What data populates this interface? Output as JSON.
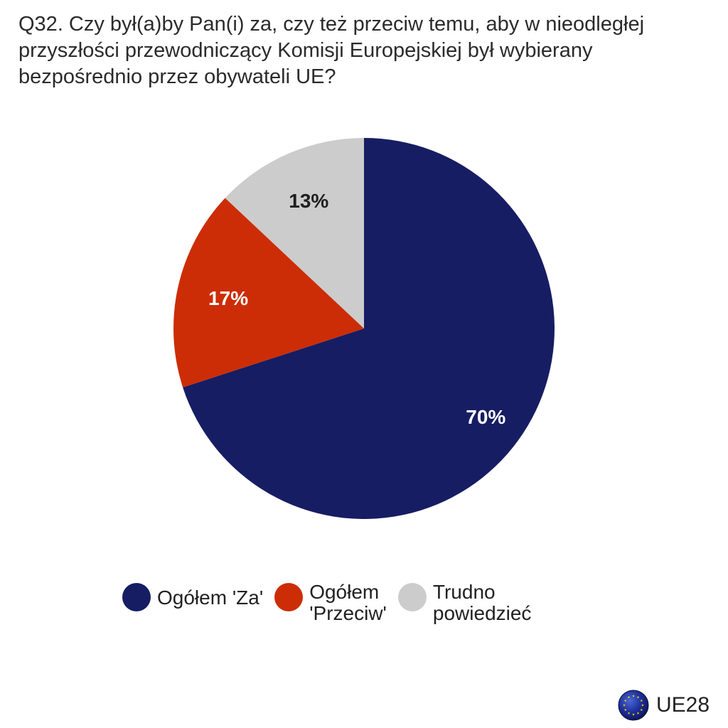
{
  "title_lines": [
    "Q32. Czy był(a)by Pan(i) za, czy też przeciw temu, aby w nieodległej",
    "przyszłości przewodniczący Komisji Europejskiej był wybierany",
    "bezpośrednio przez obywateli UE?"
  ],
  "colors": {
    "za": "#161d63",
    "przeciw": "#cc2d06",
    "trudno": "#cccccc",
    "label_dark": "#1f1f1f",
    "label_light": "#ffffff"
  },
  "chart_data": {
    "type": "pie",
    "title": "Q32. Czy był(a)by Pan(i) za, czy też przeciw temu, aby w nieodległej przyszłości przewodniczący Komisji Europejskiej był wybierany bezpośrednio przez obywateli UE?",
    "slices": [
      {
        "name": "Ogółem 'Za'",
        "value": 70,
        "label": "70%",
        "color": "#161d63"
      },
      {
        "name": "Ogółem 'Przeciw'",
        "value": 17,
        "label": "17%",
        "color": "#cc2d06"
      },
      {
        "name": "Trudno powiedzieć",
        "value": 13,
        "label": "13%",
        "color": "#cccccc"
      }
    ],
    "start": "12 o'clock",
    "direction": "clockwise",
    "legend_position": "bottom"
  },
  "legend": {
    "items": [
      {
        "lines": [
          "Ogółem 'Za'"
        ],
        "color": "#161d63"
      },
      {
        "lines": [
          "Ogółem",
          "'Przeciw'"
        ],
        "color": "#cc2d06"
      },
      {
        "lines": [
          "Trudno",
          "powiedzieć"
        ],
        "color": "#cccccc"
      }
    ]
  },
  "footer": {
    "label": "UE28",
    "icon": "eu-flag-icon"
  }
}
